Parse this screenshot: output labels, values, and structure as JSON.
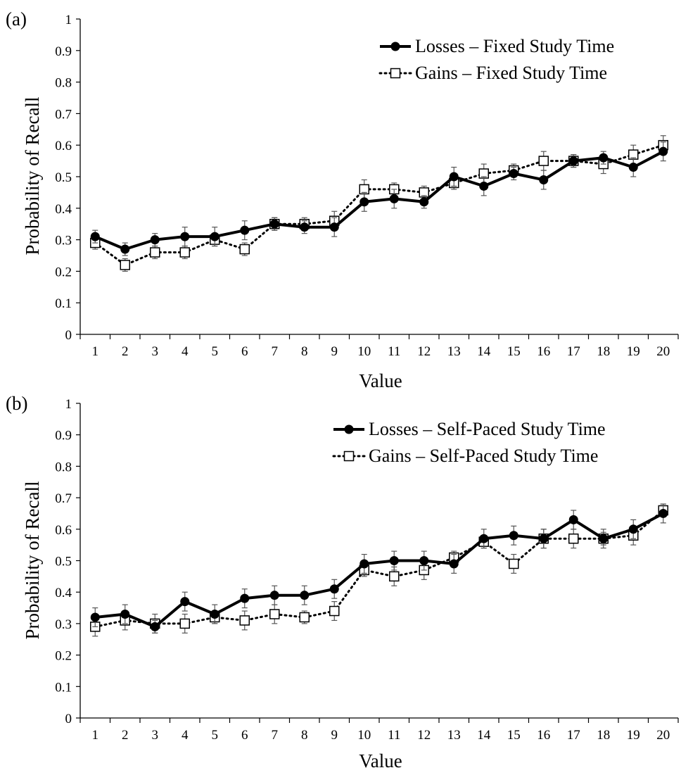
{
  "chart_data": [
    {
      "panel_label": "(a)",
      "type": "line",
      "xlabel": "Value",
      "ylabel": "Probability of Recall",
      "ylim": [
        0,
        1
      ],
      "yticks": [
        "0",
        "0.1",
        "0.2",
        "0.3",
        "0.4",
        "0.5",
        "0.6",
        "0.7",
        "0.8",
        "0.9",
        "1"
      ],
      "categories": [
        "1",
        "2",
        "3",
        "4",
        "5",
        "6",
        "7",
        "8",
        "9",
        "10",
        "11",
        "12",
        "13",
        "14",
        "15",
        "16",
        "17",
        "18",
        "19",
        "20"
      ],
      "grid": false,
      "legend_position": "top-right",
      "series": [
        {
          "name": "Losses – Fixed Study Time",
          "style": "solid-filled-circle",
          "values": [
            0.31,
            0.27,
            0.3,
            0.31,
            0.31,
            0.33,
            0.35,
            0.34,
            0.34,
            0.42,
            0.43,
            0.42,
            0.5,
            0.47,
            0.51,
            0.49,
            0.55,
            0.56,
            0.53,
            0.58
          ],
          "error": [
            0.02,
            0.02,
            0.02,
            0.03,
            0.03,
            0.03,
            0.02,
            0.02,
            0.03,
            0.03,
            0.03,
            0.02,
            0.03,
            0.03,
            0.02,
            0.03,
            0.02,
            0.02,
            0.03,
            0.03
          ]
        },
        {
          "name": "Gains – Fixed Study Time",
          "style": "dotted-open-square",
          "values": [
            0.29,
            0.22,
            0.26,
            0.26,
            0.3,
            0.27,
            0.35,
            0.35,
            0.36,
            0.46,
            0.46,
            0.45,
            0.48,
            0.51,
            0.52,
            0.55,
            0.55,
            0.54,
            0.57,
            0.6
          ],
          "error": [
            0.02,
            0.02,
            0.02,
            0.02,
            0.02,
            0.02,
            0.02,
            0.02,
            0.03,
            0.03,
            0.02,
            0.02,
            0.02,
            0.03,
            0.02,
            0.03,
            0.02,
            0.03,
            0.03,
            0.03
          ]
        }
      ]
    },
    {
      "panel_label": "(b)",
      "type": "line",
      "xlabel": "Value",
      "ylabel": "Probability of Recall",
      "ylim": [
        0,
        1
      ],
      "yticks": [
        "0",
        "0.1",
        "0.2",
        "0.3",
        "0.4",
        "0.5",
        "0.6",
        "0.7",
        "0.8",
        "0.9",
        "1"
      ],
      "categories": [
        "1",
        "2",
        "3",
        "4",
        "5",
        "6",
        "7",
        "8",
        "9",
        "10",
        "11",
        "12",
        "13",
        "14",
        "15",
        "16",
        "17",
        "18",
        "19",
        "20"
      ],
      "grid": false,
      "legend_position": "top-right",
      "series": [
        {
          "name": "Losses – Self-Paced Study Time",
          "style": "solid-filled-circle",
          "values": [
            0.32,
            0.33,
            0.29,
            0.37,
            0.33,
            0.38,
            0.39,
            0.39,
            0.41,
            0.49,
            0.5,
            0.5,
            0.49,
            0.57,
            0.58,
            0.57,
            0.63,
            0.57,
            0.6,
            0.65
          ],
          "error": [
            0.03,
            0.03,
            0.02,
            0.03,
            0.03,
            0.03,
            0.03,
            0.03,
            0.03,
            0.03,
            0.03,
            0.03,
            0.03,
            0.03,
            0.03,
            0.03,
            0.03,
            0.03,
            0.03,
            0.03
          ]
        },
        {
          "name": "Gains – Self-Paced Study Time",
          "style": "dotted-open-square",
          "values": [
            0.29,
            0.31,
            0.3,
            0.3,
            0.32,
            0.31,
            0.33,
            0.32,
            0.34,
            0.47,
            0.45,
            0.47,
            0.51,
            0.56,
            0.49,
            0.57,
            0.57,
            0.57,
            0.58,
            0.66
          ],
          "error": [
            0.03,
            0.03,
            0.03,
            0.03,
            0.02,
            0.03,
            0.03,
            0.02,
            0.03,
            0.02,
            0.03,
            0.03,
            0.02,
            0.02,
            0.03,
            0.03,
            0.03,
            0.02,
            0.03,
            0.02
          ]
        }
      ]
    }
  ]
}
